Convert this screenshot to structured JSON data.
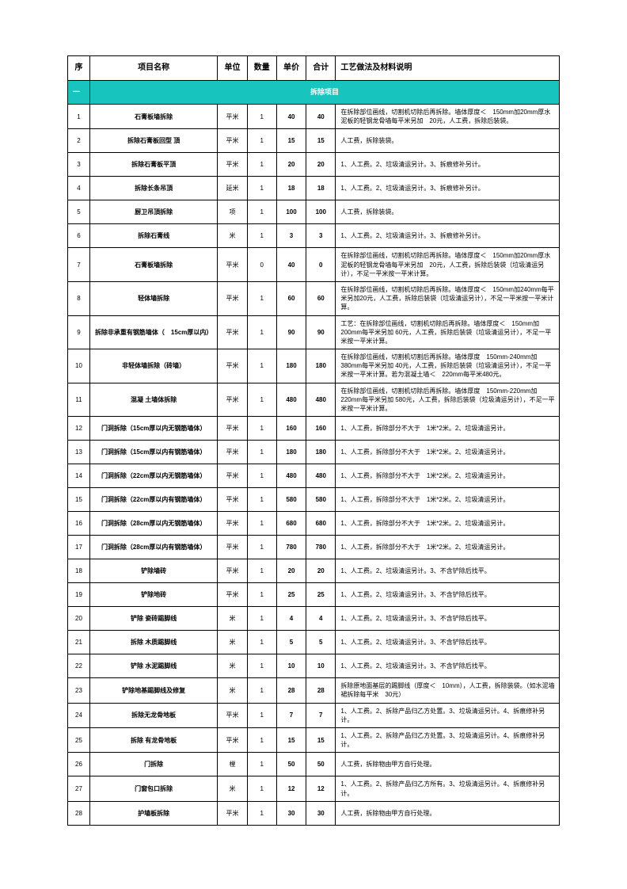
{
  "headers": {
    "seq": "序",
    "name": "项目名称",
    "unit": "单位",
    "qty": "数量",
    "price": "单价",
    "total": "合计",
    "desc": "工艺做法及材料说明"
  },
  "section": {
    "seq": "一",
    "title": "拆除项目"
  },
  "colors": {
    "section_bg": "#17c4be",
    "section_text": "#ffffff",
    "border": "#000000"
  },
  "rows": [
    {
      "seq": "1",
      "name": "石膏板墙拆除",
      "unit": "平米",
      "qty": "1",
      "price": "40",
      "total": "40",
      "desc": "在拆除部位画线，切割机切除后再拆除。墙体厚度＜　150mm加20mm厚水泥板的轻钢龙骨墙每平米另加　20元，人工费，拆除后装袋。"
    },
    {
      "seq": "2",
      "name": "拆除石膏板回型 頂",
      "unit": "平米",
      "qty": "1",
      "price": "15",
      "total": "15",
      "desc": "人工费，拆除装袋。"
    },
    {
      "seq": "3",
      "name": "拆除石膏板平頂",
      "unit": "平米",
      "qty": "1",
      "price": "20",
      "total": "20",
      "desc": "1、人工费。2、垃圾清运另计。3、拆痕修补另计。"
    },
    {
      "seq": "4",
      "name": "拆除长条吊頂",
      "unit": "延米",
      "qty": "1",
      "price": "18",
      "total": "18",
      "desc": "1、人工费。2、垃圾清运另计。3、拆痕修补另计。"
    },
    {
      "seq": "5",
      "name": "厨卫吊頂拆除",
      "unit": "项",
      "qty": "1",
      "price": "100",
      "total": "100",
      "desc": "人工费，拆除装袋。"
    },
    {
      "seq": "6",
      "name": "拆除石膏线",
      "unit": "米",
      "qty": "1",
      "price": "3",
      "total": "3",
      "desc": "1、人工费。2、垃圾清运另计。3、拆痕修补另计。"
    },
    {
      "seq": "7",
      "name": "石膏板墙拆除",
      "unit": "平米",
      "qty": "0",
      "price": "40",
      "total": "0",
      "desc": "在拆除部位画线，切割机切除后再拆除。墙体厚度＜　150mm加20mm厚水泥板的轻钢龙骨墙每平米另加　20元，人工费，拆除后装袋（垃圾清运另计），不足一平米按一平米计算。"
    },
    {
      "seq": "8",
      "name": "轻体墙拆除",
      "unit": "平米",
      "qty": "1",
      "price": "60",
      "total": "60",
      "desc": "在拆除部位画线，切割机切除后再拆除。墙体厚度＜　150mm加240mm每平米另加20元，人工费，拆除后装袋（垃圾清运另计），不足一平米按一平米计算。"
    },
    {
      "seq": "9",
      "name": "拆除非承重有钢筋墙体（　15cm厚以内）",
      "unit": "平米",
      "qty": "1",
      "price": "90",
      "total": "90",
      "desc": "工艺：在拆除部位画线，切割机切除后再拆除。墙体厚度＜　150mm加200mm每平米另加 60元，人工费，拆除后装袋（垃圾清运另计），不足一平米按一平米计算。"
    },
    {
      "seq": "10",
      "name": "非轻体墙拆除（砖墙）",
      "unit": "平米",
      "qty": "1",
      "price": "180",
      "total": "180",
      "desc": "在拆除部位画线，切割机切割后再拆除。墙体厚度　150mm-240mm加380mm每平米另加 40元，人工费，拆除后装袋（垃圾清运另计），不足一平米按一平米计算。若为混凝土墙＜　220mm每平米480元。"
    },
    {
      "seq": "11",
      "name": "混凝 土墙体拆除",
      "unit": "平米",
      "qty": "1",
      "price": "480",
      "total": "480",
      "desc": "在拆除部位画线，切割机切除后再拆除。墙体厚度　150mm-220mm加 220mm每平米另加 580元，人工费，拆除后装袋（垃圾清运另计），不足一平米按一平米计算。"
    },
    {
      "seq": "12",
      "name": "门洞拆除（15cm厚以内无钢筋墙体）",
      "unit": "平米",
      "qty": "1",
      "price": "160",
      "total": "160",
      "desc": "1、人工费，拆除部分不大于　1米*2米。2、垃圾清运另计。"
    },
    {
      "seq": "13",
      "name": "门洞拆除（15cm厚以内有钢筋墙体）",
      "unit": "平米",
      "qty": "1",
      "price": "180",
      "total": "180",
      "desc": "1、人工费，拆除部分不大于　1米*2米。2、垃圾清运另计。"
    },
    {
      "seq": "14",
      "name": "门洞拆除（22cm厚以内无钢筋墙体）",
      "unit": "平米",
      "qty": "1",
      "price": "480",
      "total": "480",
      "desc": "1、人工费，拆除部分不大于　1米*2米。2、垃圾清运另计。"
    },
    {
      "seq": "15",
      "name": "门洞拆除（22cm厚以内有钢筋墙体）",
      "unit": "平米",
      "qty": "1",
      "price": "580",
      "total": "580",
      "desc": "1、人工费，拆除部分不大于　1米*2米。2、垃圾清运另计。"
    },
    {
      "seq": "16",
      "name": "门洞拆除（28cm厚以内无钢筋墙体）",
      "unit": "平米",
      "qty": "1",
      "price": "680",
      "total": "680",
      "desc": "1、人工费，拆除部分不大于　1米*2米。2、垃圾清运另计。"
    },
    {
      "seq": "17",
      "name": "门洞拆除（28cm厚以内有钢筋墙体）",
      "unit": "平米",
      "qty": "1",
      "price": "780",
      "total": "780",
      "desc": "1、人工费，拆除部分不大于　1米*2米。2、垃圾清运另计。"
    },
    {
      "seq": "18",
      "name": "铲除墙砖",
      "unit": "平米",
      "qty": "1",
      "price": "20",
      "total": "20",
      "desc": "1、人工费。2、垃圾清运另计。3、不含铲除后找平。"
    },
    {
      "seq": "19",
      "name": "铲除地砖",
      "unit": "平米",
      "qty": "1",
      "price": "25",
      "total": "25",
      "desc": "1、人工费。2、垃圾清运另计。3、不含铲除后找平。"
    },
    {
      "seq": "20",
      "name": "铲除 瓷砖踢脚线",
      "unit": "米",
      "qty": "1",
      "price": "4",
      "total": "4",
      "desc": "1、人工费。2、垃圾清运另计。3、不含铲除后找平。"
    },
    {
      "seq": "21",
      "name": "拆除 木质踢脚线",
      "unit": "米",
      "qty": "1",
      "price": "5",
      "total": "5",
      "desc": "1、人工费。2、垃圾清运另计。3、不含铲除后找平。"
    },
    {
      "seq": "22",
      "name": "铲除 水泥踢脚线",
      "unit": "米",
      "qty": "1",
      "price": "10",
      "total": "10",
      "desc": "1、人工费。2、垃圾清运另计。3、不含铲除后找平。"
    },
    {
      "seq": "23",
      "name": "铲除地基踢脚线及修复",
      "unit": "米",
      "qty": "1",
      "price": "28",
      "total": "28",
      "desc": "拆除原地面基层的踢脚线（厚度＜　10mm），人工费，拆除装袋。（如水泥墙裙拆除每平米　30元）"
    },
    {
      "seq": "24",
      "name": "拆除无龙骨地板",
      "unit": "平米",
      "qty": "1",
      "price": "7",
      "total": "7",
      "desc": "1、人工费。2、拆除产品归乙方处置。3、垃圾清运另计。4、拆痕修补另计。"
    },
    {
      "seq": "25",
      "name": "拆除 有龙骨地板",
      "unit": "平米",
      "qty": "1",
      "price": "15",
      "total": "15",
      "desc": "1、人工费。2、拆除产品归乙方处置。3、垃圾清运另计。4、拆痕修补另计。"
    },
    {
      "seq": "26",
      "name": "门拆除",
      "unit": "樘",
      "qty": "1",
      "price": "50",
      "total": "50",
      "desc": "人工费，拆除物由甲方自行处理。"
    },
    {
      "seq": "27",
      "name": "门窗包口拆除",
      "unit": "米",
      "qty": "1",
      "price": "12",
      "total": "12",
      "desc": "1、人工费。2、拆除产品归乙方所有。3、垃圾清运另计。4、拆痕修补另计。"
    },
    {
      "seq": "28",
      "name": "护墙板拆除",
      "unit": "平米",
      "qty": "1",
      "price": "30",
      "total": "30",
      "desc": "人工费，拆除物由甲方自行处理。"
    }
  ]
}
